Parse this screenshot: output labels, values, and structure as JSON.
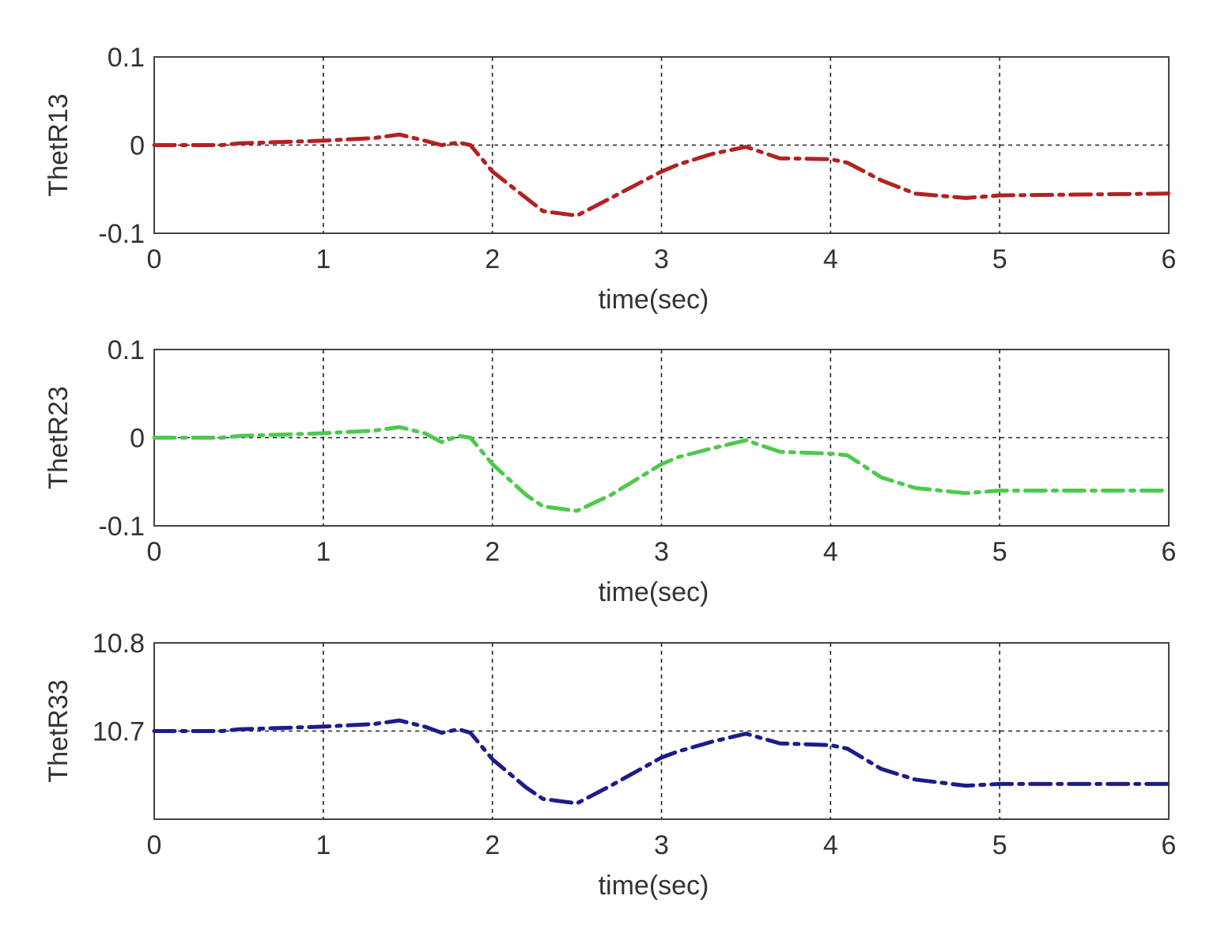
{
  "chart_data": [
    {
      "type": "line",
      "ylabel": "ThetR13",
      "xlabel": "time(sec)",
      "xlim": [
        0,
        6
      ],
      "ylim": [
        -0.1,
        0.1
      ],
      "xticks": [
        "0",
        "1",
        "2",
        "3",
        "4",
        "5",
        "6"
      ],
      "yticks": [
        "-0.1",
        "0",
        "0.1"
      ],
      "grid": true,
      "color": "#b22222",
      "x": [
        0,
        0.4,
        0.5,
        1.0,
        1.3,
        1.45,
        1.6,
        1.7,
        1.8,
        1.87,
        2.0,
        2.2,
        2.3,
        2.5,
        2.7,
        3.0,
        3.1,
        3.3,
        3.5,
        3.7,
        4.0,
        4.1,
        4.3,
        4.5,
        4.8,
        5.0,
        6.0
      ],
      "y": [
        0.0,
        0.0,
        0.002,
        0.005,
        0.008,
        0.012,
        0.005,
        0.0,
        0.003,
        0.0,
        -0.03,
        -0.06,
        -0.075,
        -0.08,
        -0.06,
        -0.03,
        -0.022,
        -0.01,
        -0.002,
        -0.015,
        -0.016,
        -0.02,
        -0.04,
        -0.055,
        -0.06,
        -0.057,
        -0.055
      ]
    },
    {
      "type": "line",
      "ylabel": "ThetR23",
      "xlabel": "time(sec)",
      "xlim": [
        0,
        6
      ],
      "ylim": [
        -0.1,
        0.1
      ],
      "xticks": [
        "0",
        "1",
        "2",
        "3",
        "4",
        "5",
        "6"
      ],
      "yticks": [
        "-0.1",
        "0",
        "0.1"
      ],
      "grid": true,
      "color": "#4dc94d",
      "x": [
        0,
        0.4,
        0.5,
        1.0,
        1.3,
        1.45,
        1.6,
        1.7,
        1.8,
        1.87,
        2.0,
        2.2,
        2.3,
        2.5,
        2.7,
        3.0,
        3.1,
        3.3,
        3.5,
        3.7,
        4.0,
        4.1,
        4.3,
        4.5,
        4.8,
        5.0,
        6.0
      ],
      "y": [
        0.0,
        0.0,
        0.002,
        0.005,
        0.008,
        0.012,
        0.005,
        -0.005,
        0.002,
        0.0,
        -0.03,
        -0.065,
        -0.078,
        -0.083,
        -0.065,
        -0.03,
        -0.022,
        -0.012,
        -0.003,
        -0.016,
        -0.018,
        -0.02,
        -0.045,
        -0.057,
        -0.063,
        -0.06,
        -0.06
      ]
    },
    {
      "type": "line",
      "ylabel": "ThetR33",
      "xlabel": "time(sec)",
      "xlim": [
        0,
        6
      ],
      "ylim": [
        10.6,
        10.8
      ],
      "xticks": [
        "0",
        "1",
        "2",
        "3",
        "4",
        "5",
        "6"
      ],
      "yticks": [
        "10.7",
        "10.8"
      ],
      "grid": true,
      "color": "#1c1c8c",
      "x": [
        0,
        0.4,
        0.5,
        1.0,
        1.3,
        1.45,
        1.6,
        1.7,
        1.8,
        1.87,
        2.0,
        2.2,
        2.3,
        2.5,
        2.7,
        3.0,
        3.1,
        3.3,
        3.5,
        3.7,
        4.0,
        4.1,
        4.3,
        4.5,
        4.8,
        5.0,
        6.0
      ],
      "y": [
        10.7,
        10.7,
        10.702,
        10.705,
        10.708,
        10.712,
        10.705,
        10.698,
        10.702,
        10.698,
        10.668,
        10.636,
        10.623,
        10.618,
        10.638,
        10.67,
        10.677,
        10.688,
        10.697,
        10.686,
        10.684,
        10.68,
        10.657,
        10.645,
        10.638,
        10.64,
        10.64
      ]
    }
  ]
}
